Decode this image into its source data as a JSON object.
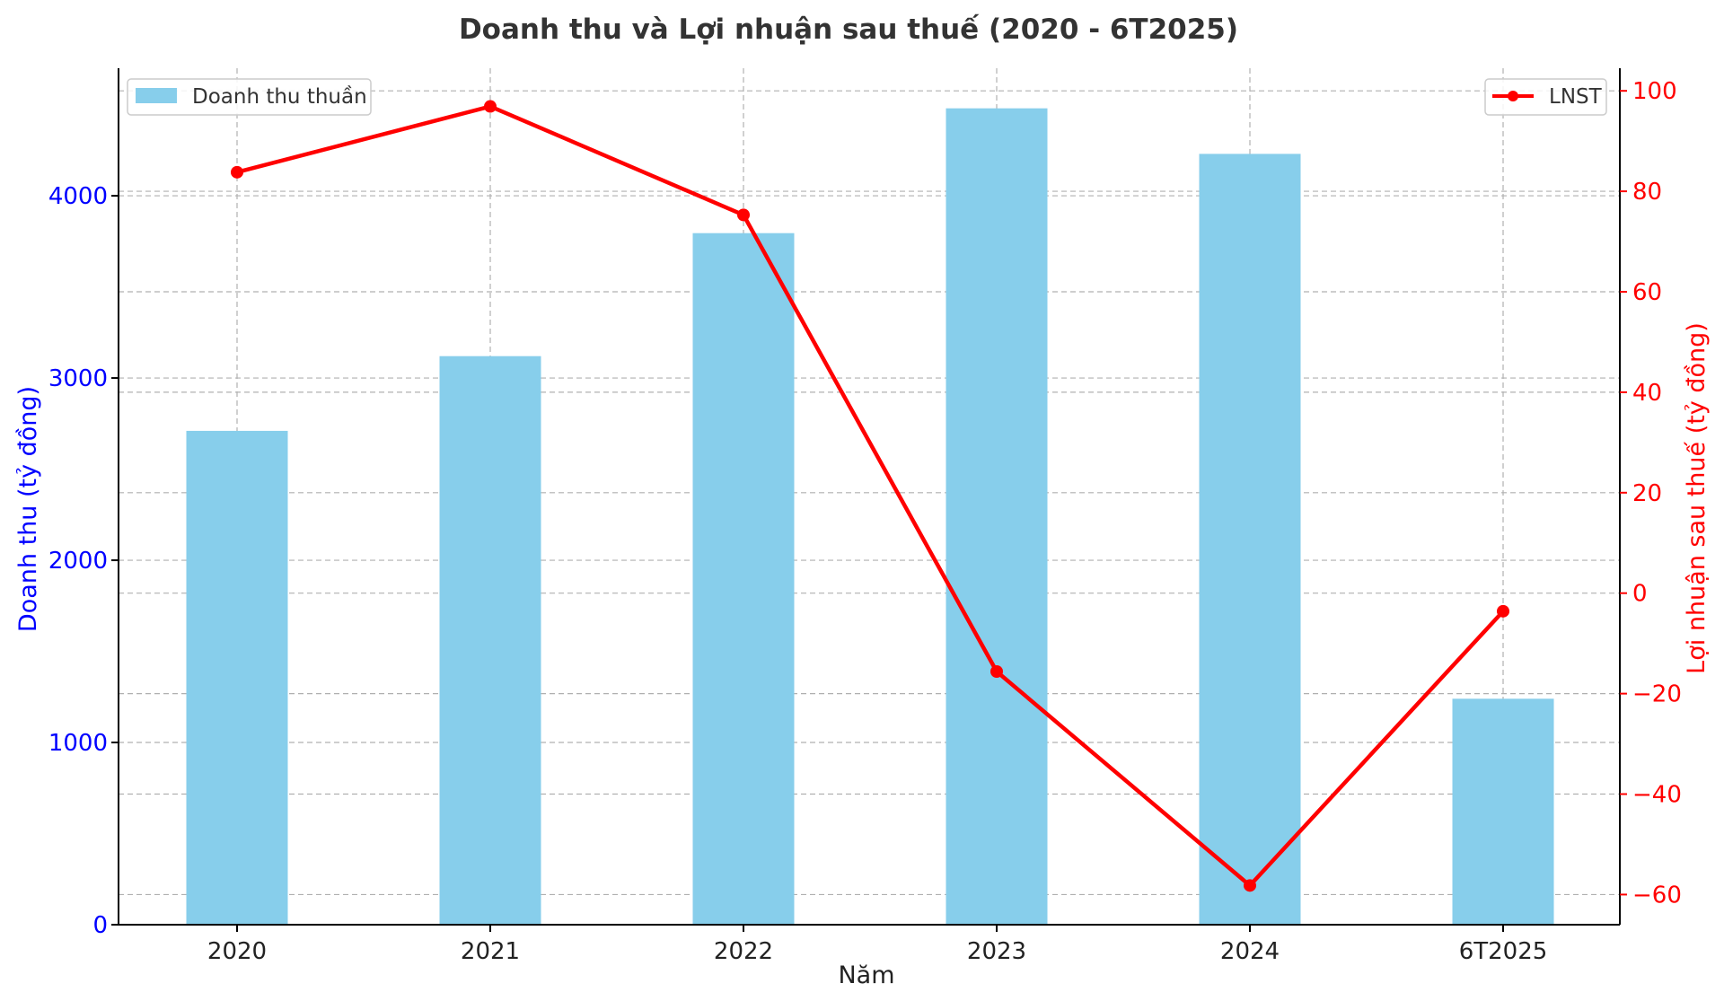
{
  "chart_data": {
    "type": "bar+line",
    "title": "Doanh thu và Lợi nhuận sau thuế (2020 - 6T2025)",
    "xlabel": "Năm",
    "categories": [
      "2020",
      "2021",
      "2022",
      "2023",
      "2024",
      "6T2025"
    ],
    "left_axis": {
      "label": "Doanh thu (tỷ đồng)",
      "ylim": [
        0,
        4700
      ],
      "ticks": [
        0,
        1000,
        2000,
        3000,
        4000
      ],
      "color": "#0000ff"
    },
    "right_axis": {
      "label": "Lợi nhuận sau thuế (tỷ đồng)",
      "ylim": [
        -66,
        104.5
      ],
      "ticks": [
        -60,
        -40,
        -20,
        0,
        20,
        40,
        60,
        80,
        100
      ],
      "tick_labels": [
        "−60",
        "−40",
        "−20",
        "0",
        "20",
        "40",
        "60",
        "80",
        "100"
      ],
      "color": "#ff0000"
    },
    "series": [
      {
        "name": "Doanh thu thuần",
        "type": "bar",
        "axis": "left",
        "color": "#87ceeb",
        "values": [
          2710,
          3120,
          3795,
          4480,
          4230,
          1240
        ]
      },
      {
        "name": "LNST",
        "type": "line",
        "axis": "right",
        "color": "#ff0000",
        "values": [
          83.8,
          96.9,
          75.3,
          -15.6,
          -58.2,
          -3.6
        ]
      }
    ],
    "grid": true,
    "legend": {
      "bar": "top-left",
      "line": "top-right"
    }
  }
}
